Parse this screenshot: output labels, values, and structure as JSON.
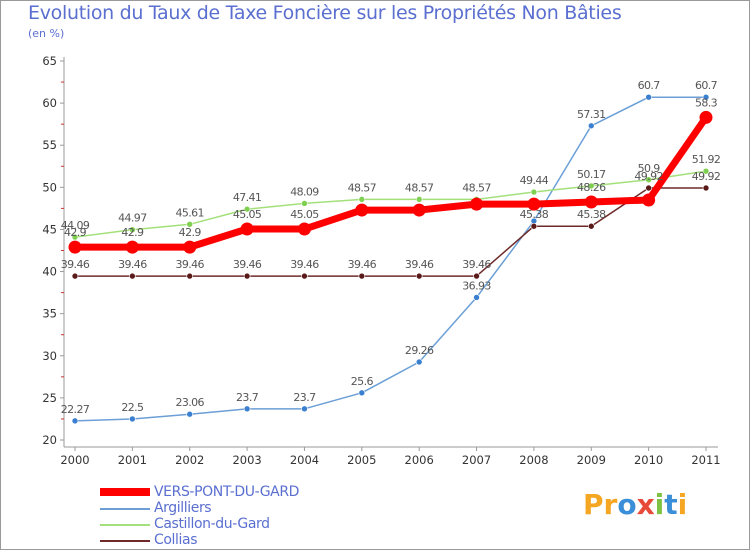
{
  "title": "Evolution du Taux de Taxe Foncière sur les Propriétés Non Bâties",
  "subtitle": "(en %)",
  "brand": {
    "letters": [
      "P",
      "r",
      "o",
      "x",
      "i",
      "t",
      "i"
    ],
    "colors": [
      "#f5a623",
      "#f5a623",
      "#3a8fd8",
      "#e84a3a",
      "#7dc242",
      "#3a8fd8",
      "#f5a623"
    ]
  },
  "chart_data": {
    "type": "line",
    "title": "Evolution du Taux de Taxe Foncière sur les Propriétés Non Bâties",
    "ylabel": "(en %)",
    "ylim": [
      20,
      65
    ],
    "yticks": [
      "20",
      "25",
      "30",
      "35",
      "40",
      "45",
      "50",
      "55",
      "60",
      "65"
    ],
    "categories": [
      "2000",
      "2001",
      "2002",
      "2003",
      "2004",
      "2005",
      "2006",
      "2007",
      "2008",
      "2009",
      "2010",
      "2011"
    ],
    "series": [
      {
        "name": "VERS-PONT-DU-GARD",
        "color": "#ff0000",
        "values": [
          42.9,
          42.9,
          42.9,
          45.05,
          45.05,
          47.3,
          47.3,
          48.01,
          48.01,
          48.26,
          48.5,
          58.3
        ],
        "labels": [
          "42.9",
          "42.9",
          "42.9",
          "45.05",
          "45.05",
          "",
          "",
          "",
          "",
          "48.26",
          "",
          "58.3"
        ]
      },
      {
        "name": "Argilliers",
        "color": "#6b9fd6",
        "values": [
          22.27,
          22.5,
          23.06,
          23.7,
          23.7,
          25.6,
          29.26,
          36.93,
          46.0,
          57.31,
          60.7,
          60.7
        ],
        "labels": [
          "22.27",
          "22.5",
          "23.06",
          "23.7",
          "23.7",
          "25.6",
          "29.26",
          "36.93",
          "",
          "57.31",
          "60.7",
          "60.7"
        ]
      },
      {
        "name": "Castillon-du-Gard",
        "color": "#a3e07a",
        "values": [
          44.09,
          44.97,
          45.61,
          47.41,
          48.09,
          48.57,
          48.57,
          48.57,
          49.44,
          50.17,
          50.9,
          51.92
        ],
        "labels": [
          "44.09",
          "44.97",
          "45.61",
          "47.41",
          "48.09",
          "48.57",
          "48.57",
          "48.57",
          "49.44",
          "50.17",
          "50.9",
          "51.92"
        ]
      },
      {
        "name": "Collias",
        "color": "#6e2a2a",
        "values": [
          39.46,
          39.46,
          39.46,
          39.46,
          39.46,
          39.46,
          39.46,
          39.46,
          45.38,
          45.38,
          49.92,
          49.92
        ],
        "labels": [
          "39.46",
          "39.46",
          "39.46",
          "39.46",
          "39.46",
          "39.46",
          "39.46",
          "39.46",
          "45.38",
          "45.38",
          "49.92",
          "49.92"
        ]
      }
    ]
  }
}
